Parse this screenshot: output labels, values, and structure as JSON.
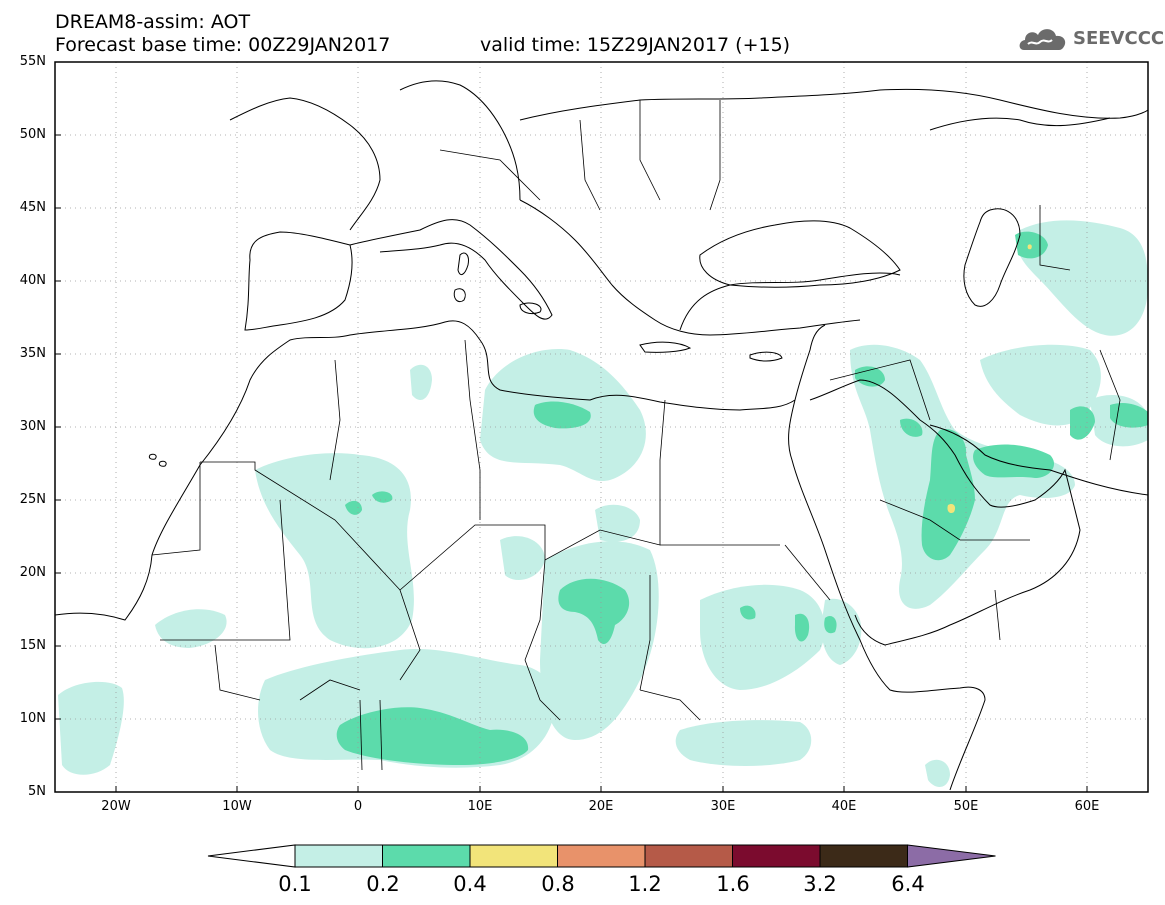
{
  "header": {
    "title_line1": "DREAM8-assim: AOT",
    "title_line2": "Forecast base time: 00Z29JAN2017",
    "valid_time": "valid time: 15Z29JAN2017 (+15)",
    "logo_text": "SEEVCCC"
  },
  "map": {
    "lat_labels": [
      "55N",
      "50N",
      "45N",
      "40N",
      "35N",
      "30N",
      "25N",
      "20N",
      "15N",
      "10N",
      "5N"
    ],
    "lon_labels": [
      "20W",
      "10W",
      "0",
      "10E",
      "20E",
      "30E",
      "40E",
      "50E",
      "60E"
    ],
    "colorbar": {
      "levels": [
        "0.1",
        "0.2",
        "0.4",
        "0.8",
        "1.2",
        "1.6",
        "3.2",
        "6.4"
      ],
      "colors": [
        "#ffffff",
        "#c4efe6",
        "#5cdbab",
        "#f2e47a",
        "#e8926a",
        "#b55a48",
        "#7b0b2e",
        "#3c2a18",
        "#8c6ca6"
      ]
    },
    "colors": {
      "border": "#000000",
      "grid": "#9a9a9a",
      "aot_0_1": "#c4efe6",
      "aot_0_2": "#5cdbab",
      "aot_0_4": "#f2e47a"
    }
  }
}
